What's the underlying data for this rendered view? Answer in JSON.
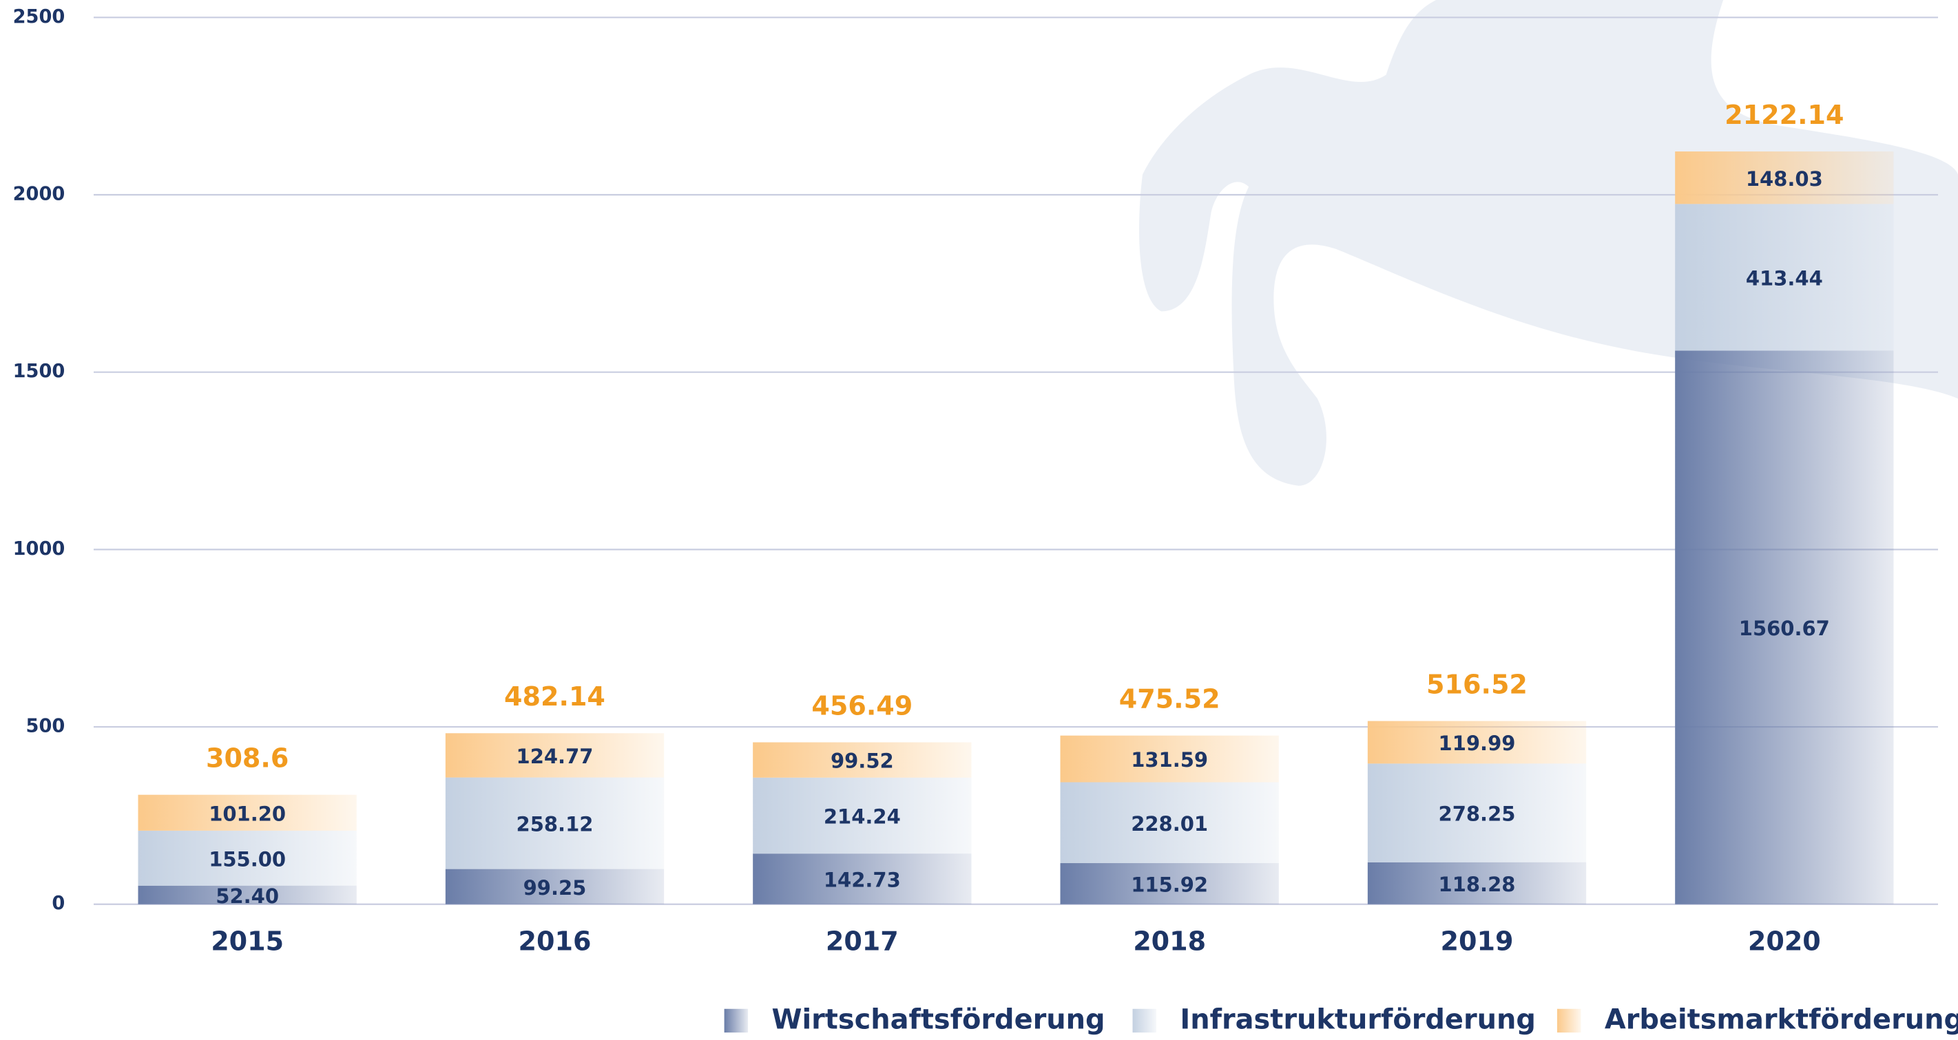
{
  "chart_data": {
    "type": "stacked_bar",
    "categories": [
      "2015",
      "2016",
      "2017",
      "2018",
      "2019",
      "2020"
    ],
    "series": [
      {
        "name": "Wirtschaftsförderung",
        "color": "#6a7da8",
        "values": [
          52.4,
          99.25,
          142.73,
          115.92,
          118.28,
          1560.67
        ],
        "value_labels": [
          "52.40",
          "99.25",
          "142.73",
          "115.92",
          "118.28",
          "1560.67"
        ]
      },
      {
        "name": "Infrastrukturförderung",
        "color": "#c3d0e1",
        "values": [
          155,
          258.12,
          214.24,
          228.01,
          278.25,
          413.44
        ],
        "value_labels": [
          "155.00",
          "258.12",
          "214.24",
          "228.01",
          "278.25",
          "413.44"
        ]
      },
      {
        "name": "Arbeitsmarktförderung",
        "color": "#fbc98a",
        "values": [
          101.2,
          124.77,
          99.52,
          131.59,
          119.99,
          148.03
        ],
        "value_labels": [
          "101.20",
          "124.77",
          "99.52",
          "131.59",
          "119.99",
          "148.03"
        ]
      }
    ],
    "totals": [
      308.6,
      482.14,
      456.49,
      475.52,
      516.52,
      2122.14
    ],
    "ylim": [
      0,
      2500
    ],
    "yticks": [
      0,
      500,
      1000,
      1500,
      2000,
      2500
    ],
    "grid": true
  }
}
